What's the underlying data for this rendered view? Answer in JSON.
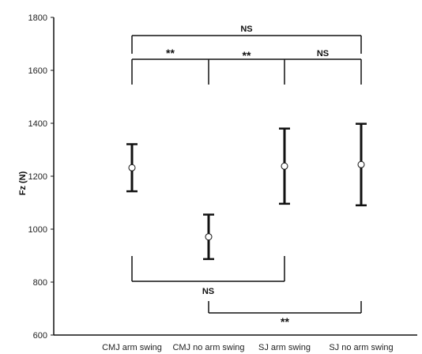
{
  "chart_data": {
    "type": "scatter",
    "ylabel": "Fz (N)",
    "ylim": [
      600,
      1800
    ],
    "yticks": [
      600,
      800,
      1000,
      1200,
      1400,
      1600,
      1800
    ],
    "grid": false,
    "categories": [
      "CMJ arm swing",
      "CMJ no arm swing",
      "SJ arm swing",
      "SJ no arm swing"
    ],
    "points": [
      {
        "category": "CMJ arm swing",
        "mean": 1232,
        "low": 1143,
        "high": 1321
      },
      {
        "category": "CMJ no arm swing",
        "mean": 971,
        "low": 887,
        "high": 1055
      },
      {
        "category": "SJ arm swing",
        "mean": 1238,
        "low": 1096,
        "high": 1380
      },
      {
        "category": "SJ no arm swing",
        "mean": 1244,
        "low": 1090,
        "high": 1398
      }
    ],
    "comparisons": [
      {
        "from": 0,
        "to": 3,
        "label": "NS",
        "position": "above"
      },
      {
        "from": 0,
        "to": 1,
        "label": "**",
        "position": "above"
      },
      {
        "from": 1,
        "to": 2,
        "label": "**",
        "position": "above"
      },
      {
        "from": 2,
        "to": 3,
        "label": "NS",
        "position": "above"
      },
      {
        "from": 0,
        "to": 2,
        "label": "NS",
        "position": "below"
      },
      {
        "from": 1,
        "to": 3,
        "label": "**",
        "position": "below"
      }
    ]
  }
}
